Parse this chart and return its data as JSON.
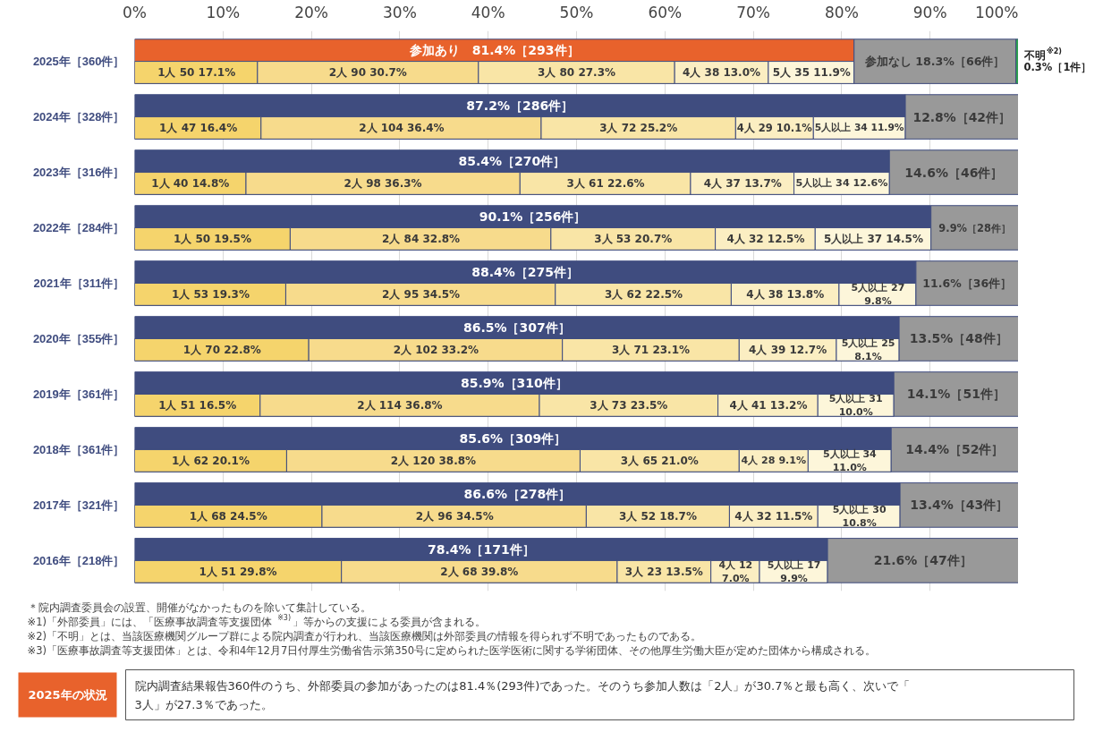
{
  "chart_data": {
    "type": "bar",
    "orientation": "horizontal",
    "categories": [
      "2025年［360件］",
      "2024年［328件］",
      "2023年［316件］",
      "2022年［284件］",
      "2021年［311件］",
      "2020年［355件］",
      "2019年［361件］",
      "2018年［361件］",
      "2017年［321件］",
      "2016年［218件］"
    ],
    "xlim": [
      0,
      100
    ],
    "xticks": [
      {
        "value": 0,
        "label": "0%"
      },
      {
        "value": 10,
        "label": "10%"
      },
      {
        "value": 20,
        "label": "20%"
      },
      {
        "value": 30,
        "label": "30%"
      },
      {
        "value": 40,
        "label": "40%"
      },
      {
        "value": 50,
        "label": "50%"
      },
      {
        "value": 60,
        "label": "60%"
      },
      {
        "value": 70,
        "label": "70%"
      },
      {
        "value": 80,
        "label": "80%"
      },
      {
        "value": 90,
        "label": "90%"
      },
      {
        "value": 100,
        "label": "100%"
      }
    ],
    "grid": "x",
    "series": [
      {
        "colors": [
          "#e8622c",
          "#3f4c7f",
          "#3f4c7f",
          "#3f4c7f",
          "#3f4c7f",
          "#3f4c7f",
          "#3f4c7f",
          "#3f4c7f",
          "#3f4c7f",
          "#3f4c7f"
        ],
        "base": [
          0,
          0,
          0,
          0,
          0,
          0,
          0,
          0,
          0,
          0
        ],
        "values": [
          81.4,
          87.2,
          85.4,
          90.1,
          88.4,
          86.5,
          85.9,
          85.6,
          86.6,
          78.4
        ],
        "value_labels": [
          "参加あり　81.4%［293件］",
          "87.2%［286件］",
          "85.4%［270件］",
          "90.1%［256件］",
          "88.4%［275件］",
          "86.5%［307件］",
          "85.9%［310件］",
          "85.6%［309件］",
          "86.6%［278件］",
          "78.4%［171件］"
        ]
      },
      {
        "color": "#f5d46c",
        "base": [
          0,
          0,
          0,
          0,
          0,
          0,
          0,
          0,
          0,
          0
        ],
        "values": [
          13.9,
          14.3,
          12.6,
          17.6,
          17.1,
          19.7,
          14.2,
          17.2,
          21.2,
          23.4
        ]
      },
      {
        "color": "#f7db8c",
        "base": [
          13.9,
          14.3,
          12.6,
          17.6,
          17.1,
          19.7,
          14.2,
          17.2,
          21.2,
          23.4
        ],
        "values": [
          25.0,
          31.7,
          31.0,
          29.5,
          30.5,
          28.7,
          31.6,
          33.2,
          29.9,
          31.2
        ]
      },
      {
        "color": "#f9e5a6",
        "base": [
          38.9,
          46.0,
          43.6,
          47.1,
          47.6,
          48.4,
          45.8,
          50.4,
          51.1,
          54.6
        ],
        "values": [
          22.2,
          22.0,
          19.3,
          18.6,
          19.9,
          20.0,
          20.2,
          18.0,
          16.2,
          10.6
        ]
      },
      {
        "color": "#fbeec2",
        "base": [
          61.1,
          68.0,
          62.9,
          65.7,
          67.5,
          68.4,
          66.0,
          68.4,
          67.3,
          65.2
        ],
        "values": [
          10.6,
          8.8,
          11.7,
          11.3,
          12.2,
          11.0,
          11.3,
          7.8,
          10.0,
          5.5
        ]
      },
      {
        "color": "#fdf6da",
        "base": [
          71.7,
          76.8,
          74.6,
          77.0,
          79.7,
          79.4,
          77.3,
          76.2,
          77.3,
          70.7
        ],
        "values": [
          9.7,
          10.4,
          10.8,
          13.1,
          8.7,
          7.1,
          8.6,
          9.4,
          9.3,
          7.7
        ]
      },
      {
        "color": "#999999",
        "base": [
          81.4,
          87.2,
          85.4,
          90.1,
          88.4,
          86.5,
          85.9,
          85.6,
          86.6,
          78.4
        ],
        "values": [
          18.3,
          12.8,
          14.6,
          9.9,
          11.6,
          13.5,
          14.1,
          14.4,
          13.4,
          21.6
        ],
        "value_labels": [
          "参加なし 18.3%［66件］",
          "12.8%［42件］",
          "14.6%［46件］",
          "9.9%［28件］",
          "11.6%［36件］",
          "13.5%［48件］",
          "14.1%［51件］",
          "14.4%［52件］",
          "13.4%［43件］",
          "21.6%［47件］"
        ]
      },
      {
        "color": "#2e9e4f",
        "base": [
          99.7,
          null,
          null,
          null,
          null,
          null,
          null,
          null,
          null,
          null
        ],
        "values": [
          0.3,
          null,
          null,
          null,
          null,
          null,
          null,
          null,
          null,
          null
        ],
        "value_labels": [
          "不明$^{※2)}$ 0.3%［1件］",
          null,
          null,
          null,
          null,
          null,
          null,
          null,
          null,
          null
        ]
      }
    ],
    "annotations": [
      {
        "text": "1人 50 17.1%",
        "x": 7.0,
        "y": "2025年［360件］"
      },
      {
        "text": "2人 90 30.7%",
        "x": 26.4,
        "y": "2025年［360件］"
      },
      {
        "text": "3人 80 27.3%",
        "x": 50.0,
        "y": "2025年［360件］"
      },
      {
        "text": "4人 38 13.0%",
        "x": 66.4,
        "y": "2025年［360件］"
      },
      {
        "text": "5人 35 11.9%",
        "x": 76.6,
        "y": "2025年［360件］"
      },
      {
        "text": "1人 47 16.4%",
        "x": 7.2,
        "y": "2024年［328件］"
      },
      {
        "text": "2人 104 36.4%",
        "x": 30.2,
        "y": "2024年［328件］"
      },
      {
        "text": "3人 72 25.2%",
        "x": 57.0,
        "y": "2024年［328件］"
      },
      {
        "text": "4人 29 10.1%",
        "x": 72.4,
        "y": "2024年［328件］"
      },
      {
        "text": "5人以上 34 11.9%",
        "x": 82.0,
        "y": "2024年［328件］"
      },
      {
        "text": "1人 40 14.8%",
        "x": 6.3,
        "y": "2023年［316件］"
      },
      {
        "text": "2人 98 36.3%",
        "x": 28.1,
        "y": "2023年［316件］"
      },
      {
        "text": "3人 61 22.6%",
        "x": 53.3,
        "y": "2023年［316件］"
      },
      {
        "text": "4人 37 13.7%",
        "x": 68.8,
        "y": "2023年［316件］"
      },
      {
        "text": "5人以上 34 12.6%",
        "x": 80.0,
        "y": "2023年［316件］"
      },
      {
        "text": "1人 50 19.5%",
        "x": 8.8,
        "y": "2022年［284件］"
      },
      {
        "text": "2人 84 32.8%",
        "x": 32.4,
        "y": "2022年［284件］"
      },
      {
        "text": "3人 53 20.7%",
        "x": 56.4,
        "y": "2022年［284件］"
      },
      {
        "text": "4人 32 12.5%",
        "x": 71.4,
        "y": "2022年［284件］"
      },
      {
        "text": "5人以上 37 14.5%",
        "x": 83.6,
        "y": "2022年［284件］"
      },
      {
        "text": "1人 53 19.3%",
        "x": 8.6,
        "y": "2021年［311件］"
      },
      {
        "text": "2人 95 34.5%",
        "x": 32.4,
        "y": "2021年［311件］"
      },
      {
        "text": "3人 62 22.5%",
        "x": 57.6,
        "y": "2021年［311件］"
      },
      {
        "text": "4人 38 13.8%",
        "x": 73.6,
        "y": "2021年［311件］"
      },
      {
        "text": "5人以上 27 9.8%",
        "x": 84.1,
        "y": "2021年［311件］"
      },
      {
        "text": "1人 70 22.8%",
        "x": 9.9,
        "y": "2020年［355件］"
      },
      {
        "text": "2人 102 33.2%",
        "x": 34.1,
        "y": "2020年［355件］"
      },
      {
        "text": "3人 71 23.1%",
        "x": 58.4,
        "y": "2020年［355件］"
      },
      {
        "text": "4人 39 12.7%",
        "x": 73.9,
        "y": "2020年［355件］"
      },
      {
        "text": "5人以上 25 8.1%",
        "x": 83.0,
        "y": "2020年［355件］"
      },
      {
        "text": "1人 51 16.5%",
        "x": 7.1,
        "y": "2019年［361件］"
      },
      {
        "text": "2人 114 36.8%",
        "x": 30.0,
        "y": "2019年［361件］"
      },
      {
        "text": "3人 73 23.5%",
        "x": 55.9,
        "y": "2019年［361件］"
      },
      {
        "text": "4人 41 13.2%",
        "x": 71.7,
        "y": "2019年［361件］"
      },
      {
        "text": "5人以上 31 10.0%",
        "x": 81.6,
        "y": "2019年［361件］"
      },
      {
        "text": "1人 62 20.1%",
        "x": 8.6,
        "y": "2018年［361件］"
      },
      {
        "text": "2人 120 38.8%",
        "x": 33.8,
        "y": "2018年［361件］"
      },
      {
        "text": "3人 65 21.0%",
        "x": 59.4,
        "y": "2018年［361件］"
      },
      {
        "text": "4人 28 9.1%",
        "x": 72.3,
        "y": "2018年［361件］"
      },
      {
        "text": "5人以上 34 11.0%",
        "x": 80.9,
        "y": "2018年［361件］"
      },
      {
        "text": "1人 68 24.5%",
        "x": 10.6,
        "y": "2017年［321件］"
      },
      {
        "text": "2人 96 34.5%",
        "x": 36.2,
        "y": "2017年［321件］"
      },
      {
        "text": "3人 52 18.7%",
        "x": 59.2,
        "y": "2017年［321件］"
      },
      {
        "text": "4人 32 11.5%",
        "x": 72.3,
        "y": "2017年［321件］"
      },
      {
        "text": "5人以上 30 10.8%",
        "x": 82.0,
        "y": "2017年［321件］"
      },
      {
        "text": "1人 51 29.8%",
        "x": 11.7,
        "y": "2016年［218件］"
      },
      {
        "text": "2人 68 39.8%",
        "x": 39.0,
        "y": "2016年［218件］"
      },
      {
        "text": "3人 23 13.5%",
        "x": 59.9,
        "y": "2016年［218件］"
      },
      {
        "text": "4人 12 7.0%",
        "x": 68.0,
        "y": "2016年［218件］"
      },
      {
        "text": "5人以上 17 9.9%",
        "x": 74.6,
        "y": "2016年［218件］"
      },
      "＊院内調査委員会の設置、開催がなかったものを除いて集計している。",
      "※1)「外部委員」には、「医療事故調査等支援団体$^{※3)}$」等からの支援による委員が含まれる。",
      "※2)「不明」とは、当該医療機関グループ群による院内調査が行われ、当該医療機関は外部委員の情報を得られず不明であったものである。",
      "※3)「医療事故調査等支援団体」とは、令和4年12月7日付厚生労働省告示第350号に定められた医学医術に関する学術団体、その他厚生労働大臣が定めた団体から構成される。",
      "2025年の状況",
      "院内調査結果報告360件のうち、外部委員の参加があったのは81.4％(293件)であった。そのうち参加人数は「2人」が30.7％と最も高く、次いで「3人」が27.3％であった。"
    ]
  }
}
